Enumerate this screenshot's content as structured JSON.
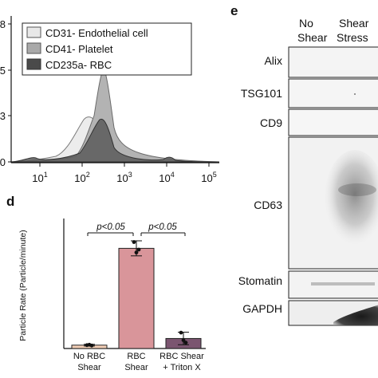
{
  "histogram": {
    "y_tick_labels": [
      "8",
      "5",
      "3",
      "0"
    ],
    "x_tick_labels": [
      "10",
      "10",
      "10",
      "10",
      "10"
    ],
    "x_tick_exponents": [
      "1",
      "2",
      "3",
      "4",
      "5"
    ],
    "legend": [
      {
        "label": "CD31- Endothelial cell",
        "color": "#e8e8e8"
      },
      {
        "label": "CD41- Platelet",
        "color": "#a9a9a9"
      },
      {
        "label": "CD235a- RBC",
        "color": "#4a4a4a"
      }
    ]
  },
  "panel_d": {
    "letter": "d",
    "comparisons": [
      "p<0.05",
      "p<0.05"
    ],
    "chart_data": {
      "type": "bar",
      "categories": [
        "No RBC Shear",
        "RBC Shear",
        "RBC Shear + Triton X"
      ],
      "category_lines": [
        [
          "No RBC",
          "Shear"
        ],
        [
          "RBC",
          "Shear"
        ],
        [
          "RBC Shear",
          "+ Triton X"
        ]
      ],
      "values": [
        8,
        240,
        24
      ],
      "error": [
        2,
        18,
        15
      ],
      "points": [
        [
          8,
          9,
          7
        ],
        [
          255,
          230,
          237
        ],
        [
          38,
          20,
          14
        ]
      ],
      "colors": [
        "#f3cfb6",
        "#d9959a",
        "#7b5570"
      ],
      "ylabel": "Particle Rate (Particle/minute)",
      "ylim": [
        0,
        300
      ]
    }
  },
  "panel_e": {
    "letter": "e",
    "columns": [
      [
        "No",
        "Shear"
      ],
      [
        "Shear",
        "Stress"
      ]
    ],
    "rows": [
      "Alix",
      "TSG101",
      "CD9",
      "CD63",
      "Stomatin",
      "GAPDH"
    ]
  }
}
